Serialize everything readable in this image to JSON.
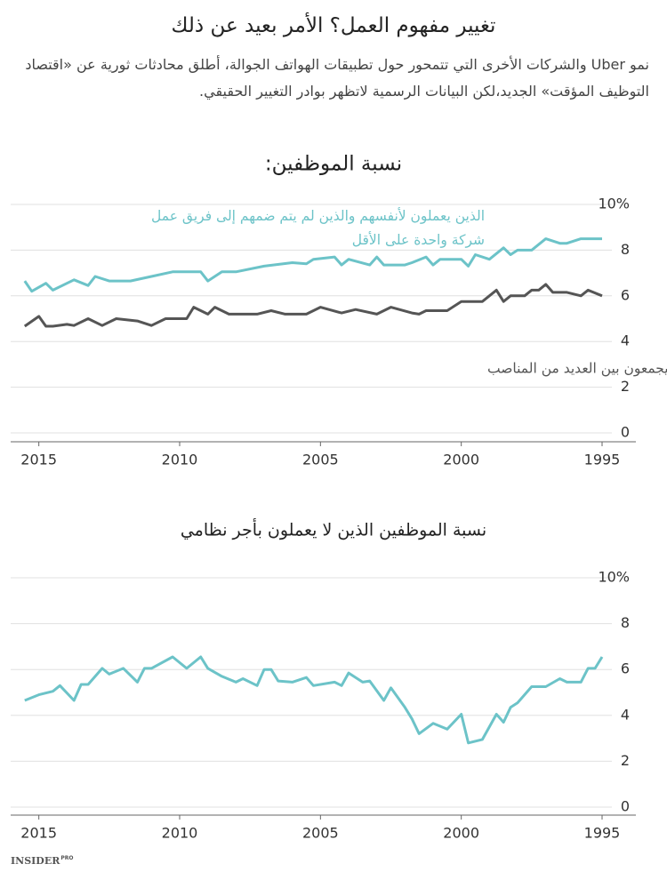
{
  "header": {
    "title": "تغيير مفهوم العمل؟ الأمر بعيد عن ذلك",
    "subtitle": "نمو Uber والشركات الأخرى التي تتمحور حول تطبيقات الهواتف الجوالة، أطلق محادثات ثورية عن «اقتصاد التوظيف المؤقت» الجديد،لكن البيانات الرسمية لاتظهر بوادر التغيير الحقيقي."
  },
  "chart_data": [
    {
      "type": "line",
      "title": "نسبة الموظفين:",
      "xlim": [
        2016,
        1993.8
      ],
      "xticks": [
        2015,
        2010,
        2005,
        2000,
        1995
      ],
      "ylim": [
        0,
        10
      ],
      "yticks": [
        0,
        2,
        4,
        6,
        8,
        {
          "value": 10,
          "label": "10%"
        }
      ],
      "grid": true,
      "series": [
        {
          "name": "الذين يعملون لأنفسهم والذين لم يتم ضمهم إلى فريق عمل شركة واحدة على الأقل",
          "color": "#6cc3c8",
          "x": [
            2015.5,
            2015.25,
            2014.75,
            2014.5,
            2013.75,
            2013.25,
            2013,
            2012.5,
            2011.75,
            2011,
            2010.25,
            2009.25,
            2009,
            2008.5,
            2008,
            2007,
            2006,
            2005.5,
            2005.25,
            2004.5,
            2004.25,
            2004,
            2003.25,
            2003,
            2002.75,
            2002,
            2001.75,
            2001.25,
            2001,
            2000.75,
            2000,
            1999.75,
            1999.5,
            1999,
            1998.5,
            1998.25,
            1998,
            1997.5,
            1997,
            1996.5,
            1996.25,
            1995.75,
            1995
          ],
          "values": [
            6.65,
            6.2,
            6.55,
            6.25,
            6.7,
            6.45,
            6.85,
            6.65,
            6.65,
            6.85,
            7.05,
            7.05,
            6.65,
            7.05,
            7.05,
            7.3,
            7.45,
            7.4,
            7.6,
            7.7,
            7.35,
            7.6,
            7.35,
            7.7,
            7.35,
            7.35,
            7.45,
            7.7,
            7.35,
            7.6,
            7.6,
            7.3,
            7.8,
            7.6,
            8.1,
            7.8,
            8.0,
            8.0,
            8.5,
            8.3,
            8.3,
            8.5,
            8.5
          ]
        },
        {
          "name": "الذين يجمعون بين العديد من المناصب",
          "color": "#555555",
          "x": [
            2015.5,
            2015,
            2014.75,
            2014.5,
            2014,
            2013.75,
            2013.25,
            2012.75,
            2012.25,
            2011.5,
            2011,
            2010.5,
            2009.75,
            2009.5,
            2009,
            2008.75,
            2008.25,
            2007.25,
            2006.75,
            2006.25,
            2005.5,
            2005,
            2004.25,
            2003.75,
            2003,
            2002.5,
            2001.75,
            2001.5,
            2001.25,
            2000.5,
            2000,
            1999.25,
            1998.75,
            1998.5,
            1998.25,
            1997.75,
            1997.5,
            1997.25,
            1997,
            1996.75,
            1996.25,
            1995.75,
            1995.5,
            1995
          ],
          "values": [
            4.67,
            5.1,
            4.67,
            4.67,
            4.75,
            4.7,
            5.0,
            4.7,
            5.0,
            4.9,
            4.7,
            5.0,
            5.0,
            5.5,
            5.2,
            5.5,
            5.2,
            5.2,
            5.35,
            5.2,
            5.2,
            5.5,
            5.25,
            5.4,
            5.2,
            5.5,
            5.25,
            5.2,
            5.35,
            5.35,
            5.75,
            5.75,
            6.25,
            5.75,
            6.0,
            6.0,
            6.25,
            6.25,
            6.5,
            6.15,
            6.15,
            6.0,
            6.25,
            6.0
          ]
        }
      ]
    },
    {
      "type": "line",
      "title": "نسبة الموظفين الذين لا يعملون بأجر نظامي",
      "xlim": [
        2016,
        1993.8
      ],
      "xticks": [
        2015,
        2010,
        2005,
        2000,
        1995
      ],
      "ylim": [
        0,
        10
      ],
      "yticks": [
        0,
        2,
        4,
        6,
        8,
        {
          "value": 10,
          "label": "10%"
        }
      ],
      "grid": true,
      "series": [
        {
          "color": "#6cc3c8",
          "x": [
            2015.5,
            2015,
            2014.5,
            2014.25,
            2013.75,
            2013.5,
            2013.25,
            2012.75,
            2012.5,
            2012,
            2011.5,
            2011.25,
            2011,
            2010.25,
            2009.75,
            2009.25,
            2009,
            2008.5,
            2008,
            2007.75,
            2007.25,
            2007,
            2006.75,
            2006.5,
            2006,
            2005.5,
            2005.25,
            2004.5,
            2004.25,
            2004,
            2003.5,
            2003.25,
            2002.75,
            2002.5,
            2002,
            2001.75,
            2001.5,
            2001,
            2000.5,
            2000,
            1999.75,
            1999.25,
            1998.75,
            1998.5,
            1998.25,
            1998,
            1997.5,
            1997,
            1996.5,
            1996.25,
            1995.75,
            1995.5,
            1995.25,
            1995
          ],
          "values": [
            4.65,
            4.9,
            5.05,
            5.3,
            4.65,
            5.35,
            5.35,
            6.05,
            5.8,
            6.05,
            5.45,
            6.05,
            6.05,
            6.55,
            6.05,
            6.55,
            6.05,
            5.7,
            5.45,
            5.6,
            5.3,
            6.0,
            6.0,
            5.5,
            5.45,
            5.65,
            5.3,
            5.45,
            5.3,
            5.85,
            5.45,
            5.5,
            4.65,
            5.2,
            4.35,
            3.85,
            3.2,
            3.65,
            3.4,
            4.05,
            2.8,
            2.95,
            4.05,
            3.7,
            4.35,
            4.55,
            5.25,
            5.25,
            5.6,
            5.45,
            5.45,
            6.05,
            6.05,
            6.55
          ]
        }
      ]
    }
  ],
  "footer": {
    "brand": "INSIDER",
    "tag": "PRO"
  }
}
